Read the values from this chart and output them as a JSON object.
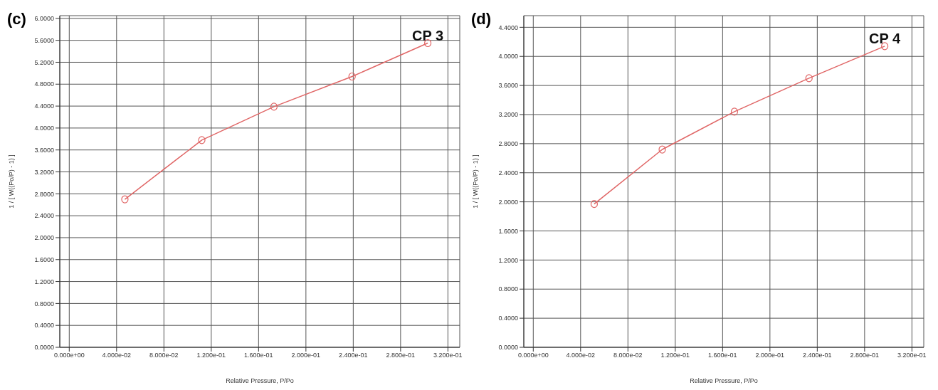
{
  "chart_data": [
    {
      "type": "line",
      "title": "(c)",
      "xlabel": "Relative Pressure, P/Po",
      "ylabel": "1 / [ W((Po/P) - 1) ]",
      "x": [
        0.047,
        0.112,
        0.173,
        0.239,
        0.303
      ],
      "series": [
        {
          "color": "#e06666",
          "values": [
            2.7,
            3.78,
            4.39,
            4.94,
            5.55
          ]
        }
      ],
      "marker": "circle",
      "line_style": "solid",
      "grid": true,
      "legend": false,
      "xlim": [
        -0.008,
        0.33
      ],
      "ylim": [
        0,
        6.05
      ],
      "xticks": [
        {
          "value": 0,
          "label": "0.000e+00"
        },
        {
          "value": 0.04,
          "label": "4.000e-02"
        },
        {
          "value": 0.08,
          "label": "8.000e-02"
        },
        {
          "value": 0.12,
          "label": "1.200e-01"
        },
        {
          "value": 0.16,
          "label": "1.600e-01"
        },
        {
          "value": 0.2,
          "label": "2.000e-01"
        },
        {
          "value": 0.24,
          "label": "2.400e-01"
        },
        {
          "value": 0.28,
          "label": "2.800e-01"
        },
        {
          "value": 0.32,
          "label": "3.200e-01"
        }
      ],
      "yticks": [
        {
          "value": 0,
          "label": "0.0000"
        },
        {
          "value": 0.4,
          "label": "0.4000"
        },
        {
          "value": 0.8,
          "label": "0.8000"
        },
        {
          "value": 1.2,
          "label": "1.2000"
        },
        {
          "value": 1.6,
          "label": "1.6000"
        },
        {
          "value": 2,
          "label": "2.0000"
        },
        {
          "value": 2.4,
          "label": "2.4000"
        },
        {
          "value": 2.8,
          "label": "2.8000"
        },
        {
          "value": 3.2,
          "label": "3.2000"
        },
        {
          "value": 3.6,
          "label": "3.6000"
        },
        {
          "value": 4,
          "label": "4.0000"
        },
        {
          "value": 4.4,
          "label": "4.4000"
        },
        {
          "value": 4.8,
          "label": "4.8000"
        },
        {
          "value": 5.2,
          "label": "5.2000"
        },
        {
          "value": 5.6,
          "label": "5.6000"
        },
        {
          "value": 6,
          "label": "6.0000"
        }
      ],
      "annotations": [
        {
          "text": "CP 3",
          "x": 0.303,
          "y": 5.55
        }
      ]
    },
    {
      "type": "line",
      "title": "(d)",
      "xlabel": "Relative Pressure, P/Po",
      "ylabel": "1 / [ W((Po/P) - 1) ]",
      "x": [
        0.0515,
        0.109,
        0.17,
        0.233,
        0.297
      ],
      "series": [
        {
          "color": "#e06666",
          "values": [
            1.97,
            2.72,
            3.24,
            3.7,
            4.14
          ]
        }
      ],
      "marker": "circle",
      "line_style": "solid",
      "grid": true,
      "legend": false,
      "xlim": [
        -0.008,
        0.33
      ],
      "ylim": [
        0,
        4.56
      ],
      "xticks": [
        {
          "value": 0,
          "label": "0.000e+00"
        },
        {
          "value": 0.04,
          "label": "4.000e-02"
        },
        {
          "value": 0.08,
          "label": "8.000e-02"
        },
        {
          "value": 0.12,
          "label": "1.200e-01"
        },
        {
          "value": 0.16,
          "label": "1.600e-01"
        },
        {
          "value": 0.2,
          "label": "2.000e-01"
        },
        {
          "value": 0.24,
          "label": "2.400e-01"
        },
        {
          "value": 0.28,
          "label": "2.800e-01"
        },
        {
          "value": 0.32,
          "label": "3.200e-01"
        }
      ],
      "yticks": [
        {
          "value": 0,
          "label": "0.0000"
        },
        {
          "value": 0.4,
          "label": "0.4000"
        },
        {
          "value": 0.8,
          "label": "0.8000"
        },
        {
          "value": 1.2,
          "label": "1.2000"
        },
        {
          "value": 1.6,
          "label": "1.6000"
        },
        {
          "value": 2,
          "label": "2.0000"
        },
        {
          "value": 2.4,
          "label": "2.4000"
        },
        {
          "value": 2.8,
          "label": "2.8000"
        },
        {
          "value": 3.2,
          "label": "3.2000"
        },
        {
          "value": 3.6,
          "label": "3.6000"
        },
        {
          "value": 4,
          "label": "4.0000"
        },
        {
          "value": 4.4,
          "label": "4.4000"
        }
      ],
      "annotations": [
        {
          "text": "CP 4",
          "x": 0.297,
          "y": 4.14
        }
      ]
    }
  ]
}
